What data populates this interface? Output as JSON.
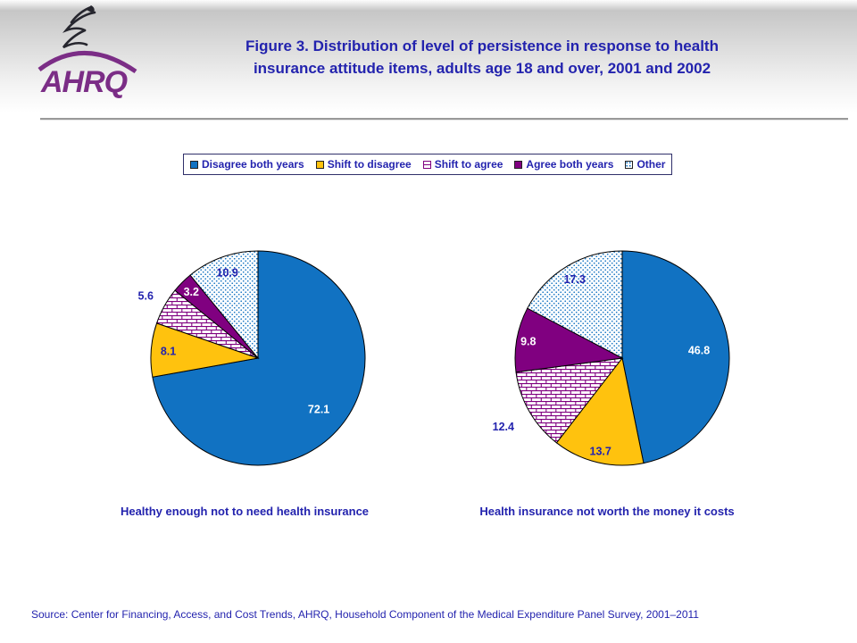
{
  "header": {
    "logo_org": "AHRQ",
    "title_line1": "Figure 3. Distribution of level of persistence in response to health",
    "title_line2": "insurance attitude items, adults age 18 and over, 2001 and 2002"
  },
  "colors": {
    "blue": "#1172C2",
    "yellow": "#FFC20E",
    "purple": "#800080",
    "navy_text": "#2323AE",
    "logo_purple": "#7B2D86",
    "slice_outline": "#000000"
  },
  "legend": {
    "items": [
      {
        "label": "Disagree both years",
        "swatch": "solid-blue-square"
      },
      {
        "label": "Shift to disagree",
        "swatch": "solid-yellow-square"
      },
      {
        "label": "Shift to agree",
        "swatch": "brick-pattern-square"
      },
      {
        "label": "Agree both years",
        "swatch": "solid-purple-square"
      },
      {
        "label": "Other",
        "swatch": "dot-pattern-square"
      }
    ]
  },
  "chart_data": [
    {
      "type": "pie",
      "title": "Healthy enough not to need health insurance",
      "start_angle_deg": 0,
      "direction": "clockwise",
      "radius_px": 120,
      "slices": [
        {
          "label": "Disagree both years",
          "value": 72.1,
          "fill": "blue",
          "label_color": "white",
          "label_r": 0.74
        },
        {
          "label": "Shift to disagree",
          "value": 8.1,
          "fill": "yellow",
          "label_color": "navy",
          "label_r": 0.84
        },
        {
          "label": "Shift to agree",
          "value": 5.6,
          "fill": "brick",
          "label_color": "navy",
          "label_r": 1.2
        },
        {
          "label": "Agree both years",
          "value": 3.2,
          "fill": "purple",
          "label_color": "white",
          "label_r": 0.88
        },
        {
          "label": "Other",
          "value": 10.9,
          "fill": "dots",
          "label_color": "navy",
          "label_r": 0.85
        }
      ]
    },
    {
      "type": "pie",
      "title": "Health insurance not worth the money it costs",
      "start_angle_deg": 0,
      "direction": "clockwise",
      "radius_px": 120,
      "slices": [
        {
          "label": "Disagree both years",
          "value": 46.8,
          "fill": "blue",
          "label_color": "white",
          "label_r": 0.72
        },
        {
          "label": "Shift to disagree",
          "value": 13.7,
          "fill": "yellow",
          "label_color": "navy",
          "label_r": 0.89
        },
        {
          "label": "Shift to agree",
          "value": 12.4,
          "fill": "brick",
          "label_color": "navy",
          "label_r": 1.28
        },
        {
          "label": "Agree both years",
          "value": 9.8,
          "fill": "purple",
          "label_color": "white",
          "label_r": 0.89
        },
        {
          "label": "Other",
          "value": 17.3,
          "fill": "dots",
          "label_color": "navy",
          "label_r": 0.86
        }
      ]
    }
  ],
  "source": "Source: Center for Financing, Access, and Cost Trends, AHRQ, Household Component of the Medical Expenditure Panel Survey, 2001–2011"
}
